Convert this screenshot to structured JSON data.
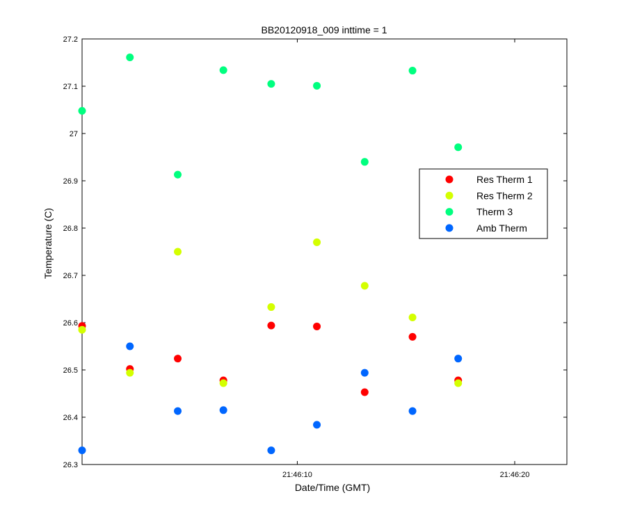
{
  "chart_data": {
    "type": "scatter",
    "title": "BB20120918_009 inttime = 1",
    "xlabel": "Date/Time (GMT)",
    "ylabel": "Temperature (C)",
    "x_unit": "time (GMT)",
    "xlim": [
      "21:46:00.1",
      "21:46:22.4"
    ],
    "ylim": [
      26.3,
      27.2
    ],
    "yticks": [
      26.3,
      26.4,
      26.5,
      26.6,
      26.7,
      26.8,
      26.9,
      27,
      27.1,
      27.2
    ],
    "ytick_labels": [
      "26.3",
      "26.4",
      "26.5",
      "26.6",
      "26.7",
      "26.8",
      "26.9",
      "27",
      "27.1",
      "27.2"
    ],
    "xticks": [
      "21:46:10",
      "21:46:20"
    ],
    "xtick_labels": [
      "21:46:10",
      "21:46:20"
    ],
    "grid": false,
    "legend_position": "top-right",
    "x": [
      "21:46:00.1",
      "21:46:02.3",
      "21:46:04.5",
      "21:46:06.6",
      "21:46:08.8",
      "21:46:10.9",
      "21:46:13.1",
      "21:46:15.3",
      "21:46:17.4"
    ],
    "series": [
      {
        "name": "Res Therm 1",
        "color": "#ff0000",
        "values": [
          26.593,
          26.502,
          26.524,
          26.478,
          26.594,
          26.592,
          26.453,
          26.57,
          26.478
        ]
      },
      {
        "name": "Res Therm 2",
        "color": "#d4ff00",
        "values": [
          26.585,
          26.494,
          26.75,
          26.472,
          26.633,
          26.77,
          26.678,
          26.611,
          26.472
        ]
      },
      {
        "name": "Therm 3",
        "color": "#00ff7f",
        "values": [
          27.048,
          27.161,
          26.913,
          27.134,
          27.105,
          27.101,
          26.94,
          27.133,
          26.971
        ]
      },
      {
        "name": "Amb Therm",
        "color": "#0066ff",
        "values": [
          26.33,
          26.55,
          26.413,
          26.415,
          26.33,
          26.384,
          26.494,
          26.413,
          26.524
        ]
      }
    ]
  }
}
